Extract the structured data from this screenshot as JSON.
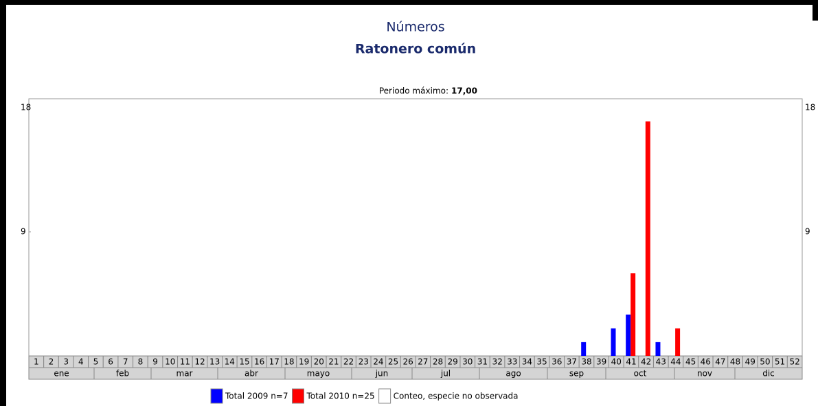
{
  "chart_data": {
    "type": "bar",
    "title": "Números",
    "subtitle": "Ratonero común",
    "annotation": {
      "label": "Periodo máximo:",
      "value": "17,00"
    },
    "categories": [
      "1",
      "2",
      "3",
      "4",
      "5",
      "6",
      "7",
      "8",
      "9",
      "10",
      "11",
      "12",
      "13",
      "14",
      "15",
      "16",
      "17",
      "18",
      "19",
      "20",
      "21",
      "22",
      "23",
      "24",
      "25",
      "26",
      "27",
      "28",
      "29",
      "30",
      "31",
      "32",
      "33",
      "34",
      "35",
      "36",
      "37",
      "38",
      "39",
      "40",
      "41",
      "42",
      "43",
      "44",
      "45",
      "46",
      "47",
      "48",
      "49",
      "50",
      "51",
      "52"
    ],
    "months": [
      "ene",
      "feb",
      "mar",
      "abr",
      "mayo",
      "jun",
      "jul",
      "ago",
      "sep",
      "oct",
      "nov",
      "dic"
    ],
    "series": [
      {
        "name": "Total 2009 n=7",
        "color": "#0000ff",
        "values": [
          null,
          null,
          null,
          null,
          null,
          null,
          null,
          null,
          null,
          null,
          null,
          null,
          null,
          null,
          null,
          null,
          null,
          null,
          null,
          null,
          null,
          null,
          null,
          null,
          null,
          null,
          null,
          null,
          null,
          null,
          null,
          null,
          null,
          null,
          null,
          null,
          null,
          1,
          null,
          2,
          3,
          null,
          1,
          null,
          null,
          null,
          null,
          null,
          null,
          null,
          null,
          null
        ]
      },
      {
        "name": "Total 2010 n=25",
        "color": "#ff0000",
        "values": [
          null,
          null,
          null,
          null,
          null,
          null,
          null,
          null,
          null,
          null,
          null,
          null,
          null,
          null,
          null,
          null,
          null,
          null,
          null,
          null,
          null,
          null,
          null,
          null,
          null,
          null,
          null,
          null,
          null,
          null,
          null,
          null,
          null,
          null,
          null,
          null,
          null,
          null,
          null,
          null,
          6,
          17,
          null,
          2,
          null,
          null,
          null,
          null,
          null,
          null,
          null,
          null
        ]
      }
    ],
    "legend_extra": {
      "name": "Conteo, especie no observada",
      "color": "#ffffff"
    },
    "ylim": [
      0,
      18
    ],
    "yticks": [
      9,
      18
    ]
  }
}
